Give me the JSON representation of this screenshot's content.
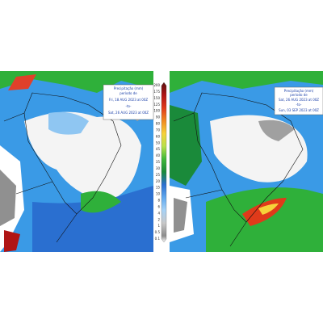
{
  "maps": [
    {
      "legend": {
        "title": "Precipitação (mm)",
        "subtitle": "período de",
        "start": "Fri, 18 AUG 2023 at 00Z",
        "separator": "-to-",
        "end": "Sat, 26 AUG 2023 at 00Z"
      }
    },
    {
      "legend": {
        "title": "Precipitação (mm)",
        "subtitle": "período de",
        "start": "Sat, 26 AUG 2023 at 00Z",
        "separator": "-to-",
        "end": "Sun, 03 SEP 2023 at 00Z"
      }
    }
  ],
  "colorbar": {
    "labels": [
      "200",
      "175",
      "150",
      "125",
      "100",
      "90",
      "80",
      "70",
      "60",
      "50",
      "45",
      "40",
      "35",
      "30",
      "25",
      "20",
      "15",
      "10",
      "8",
      "6",
      "4",
      "2",
      "1",
      "0.5",
      "0.1"
    ]
  }
}
